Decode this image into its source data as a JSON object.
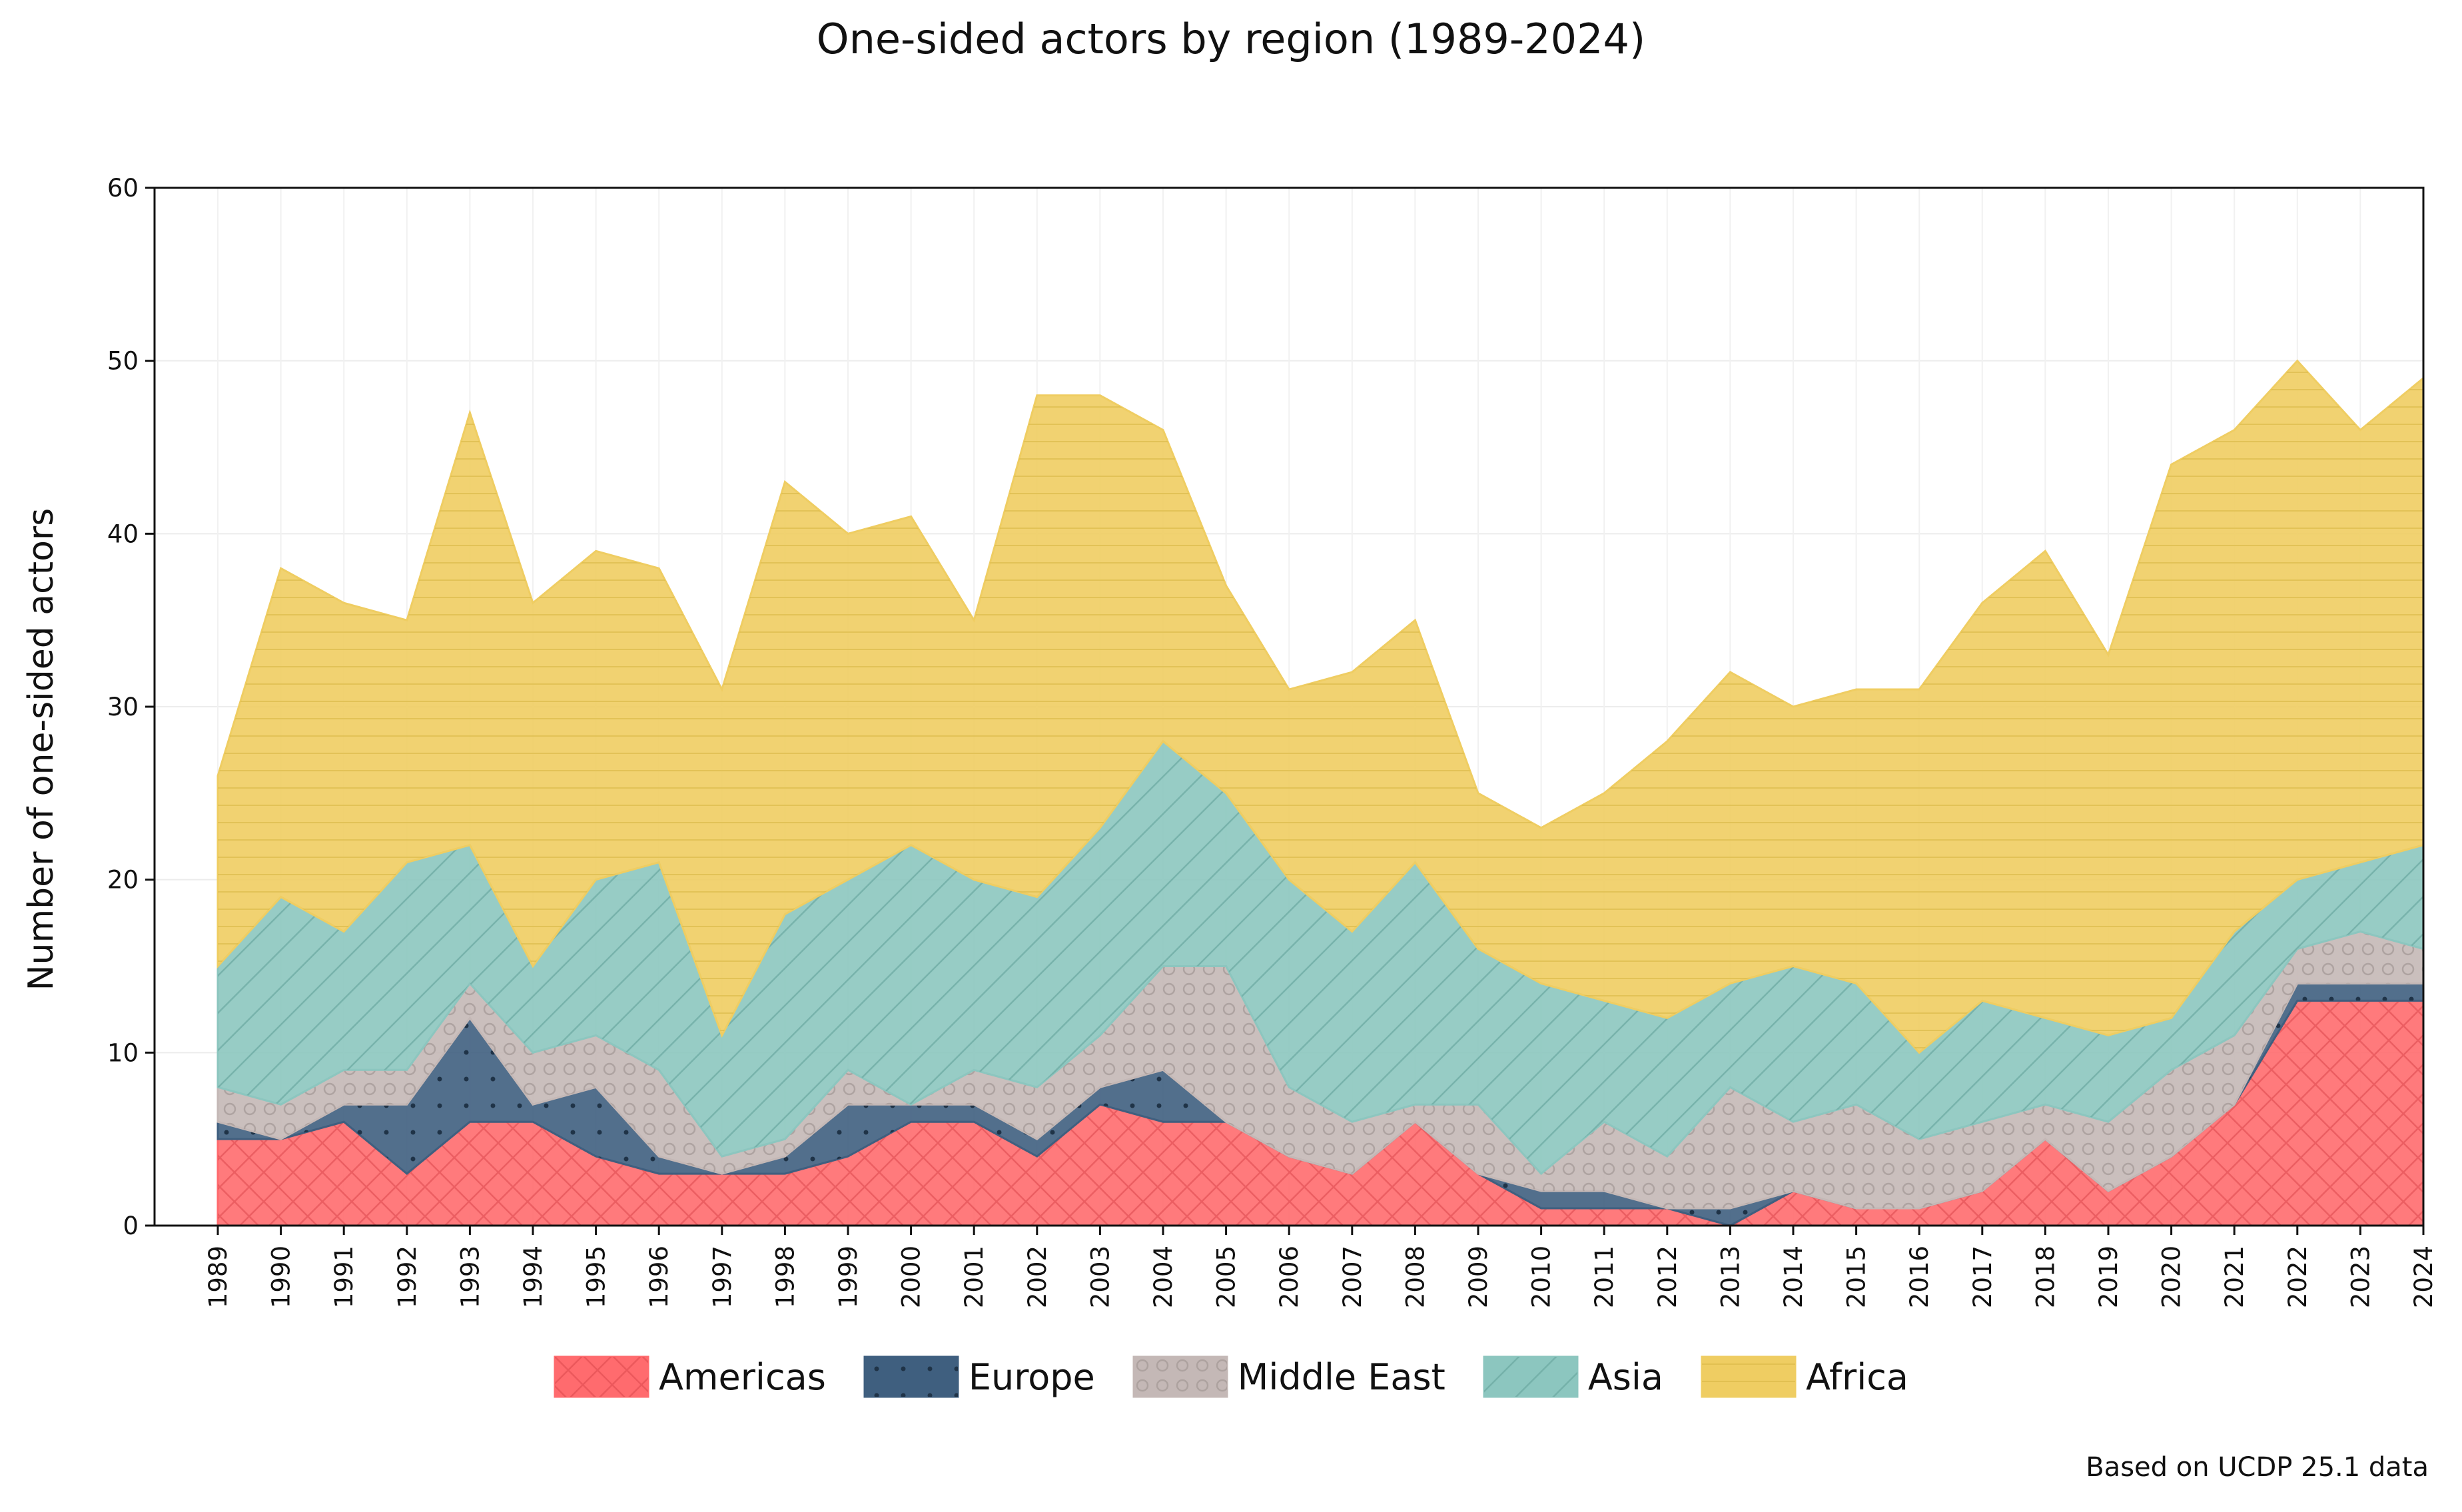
{
  "chart_data": {
    "type": "area",
    "title": "One-sided actors by region (1989-2024)",
    "ylabel": "Number of one-sided actors",
    "xlabel": "",
    "ylim": [
      0,
      60
    ],
    "yticks": [
      0,
      10,
      20,
      30,
      40,
      50,
      60
    ],
    "stacked": true,
    "grid": true,
    "legend_position": "bottom",
    "note": "Based on UCDP 25.1 data",
    "x": [
      "1989",
      "1990",
      "1991",
      "1992",
      "1993",
      "1994",
      "1995",
      "1996",
      "1997",
      "1998",
      "1999",
      "2000",
      "2001",
      "2002",
      "2003",
      "2004",
      "2005",
      "2006",
      "2007",
      "2008",
      "2009",
      "2010",
      "2011",
      "2012",
      "2013",
      "2014",
      "2015",
      "2016",
      "2017",
      "2018",
      "2019",
      "2020",
      "2021",
      "2022",
      "2023",
      "2024"
    ],
    "series": [
      {
        "name": "Americas",
        "color": "#ff6b6e",
        "pattern": "crosshatch",
        "values": [
          5,
          5,
          6,
          3,
          6,
          6,
          4,
          3,
          3,
          3,
          4,
          6,
          6,
          4,
          7,
          6,
          6,
          4,
          3,
          6,
          3,
          1,
          1,
          1,
          0,
          2,
          1,
          1,
          2,
          5,
          2,
          4,
          7,
          13,
          13,
          13
        ]
      },
      {
        "name": "Europe",
        "color": "#3f5f7f",
        "pattern": "dots",
        "values": [
          1,
          0,
          1,
          4,
          6,
          1,
          4,
          1,
          0,
          1,
          3,
          1,
          1,
          1,
          1,
          3,
          0,
          0,
          0,
          0,
          0,
          1,
          1,
          0,
          1,
          0,
          0,
          0,
          0,
          0,
          0,
          0,
          0,
          1,
          1,
          1
        ]
      },
      {
        "name": "Middle East",
        "color": "#c4b8b6",
        "pattern": "circles",
        "values": [
          2,
          2,
          2,
          2,
          2,
          3,
          3,
          5,
          1,
          1,
          2,
          0,
          2,
          3,
          3,
          6,
          9,
          4,
          3,
          1,
          4,
          1,
          4,
          3,
          7,
          4,
          6,
          4,
          4,
          2,
          4,
          5,
          4,
          2,
          3,
          2
        ]
      },
      {
        "name": "Asia",
        "color": "#8cc6bf",
        "pattern": "diagonal",
        "values": [
          7,
          12,
          8,
          12,
          8,
          5,
          9,
          12,
          7,
          13,
          11,
          15,
          11,
          11,
          12,
          13,
          10,
          12,
          11,
          14,
          9,
          11,
          7,
          8,
          6,
          9,
          7,
          5,
          7,
          5,
          5,
          3,
          6,
          4,
          4,
          6
        ]
      },
      {
        "name": "Africa",
        "color": "#efcd62",
        "pattern": "horizontal",
        "values": [
          11,
          19,
          19,
          14,
          25,
          21,
          19,
          17,
          20,
          25,
          20,
          19,
          15,
          29,
          25,
          18,
          12,
          11,
          15,
          14,
          9,
          9,
          12,
          16,
          18,
          15,
          17,
          21,
          23,
          27,
          22,
          32,
          29,
          30,
          25,
          27
        ]
      }
    ]
  }
}
